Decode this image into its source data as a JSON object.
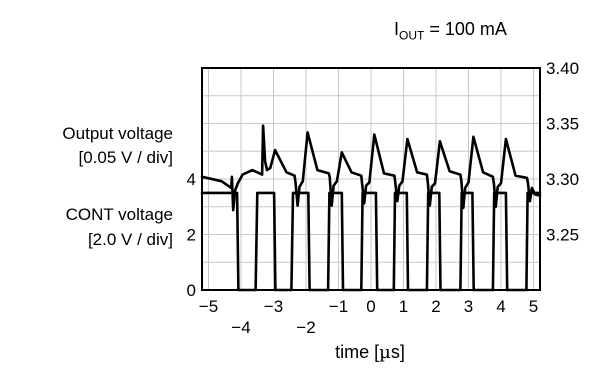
{
  "annotation": {
    "prefix": "I",
    "subscript": "OUT",
    "suffix": " = 100 mA"
  },
  "left_labels": {
    "output_line1": "Output voltage",
    "output_line2": "[0.05 V / div]",
    "cont_line1": "CONT voltage",
    "cont_line2": "[2.0 V / div]"
  },
  "xlabel_parts": {
    "before": "time [",
    "mu": "µ",
    "after": "s]"
  },
  "chart_data": {
    "type": "line",
    "xlim": [
      -5.2,
      5.2
    ],
    "grid": true,
    "x_ticks": [
      {
        "value": -5,
        "label": "−5",
        "row": "upper"
      },
      {
        "value": -4,
        "label": "−4",
        "row": "lower"
      },
      {
        "value": -3,
        "label": "−3",
        "row": "upper"
      },
      {
        "value": -2,
        "label": "−2",
        "row": "lower"
      },
      {
        "value": -1,
        "label": "−1",
        "row": "upper"
      },
      {
        "value": 0,
        "label": "0",
        "row": "upper"
      },
      {
        "value": 1,
        "label": "1",
        "row": "upper"
      },
      {
        "value": 2,
        "label": "2",
        "row": "upper"
      },
      {
        "value": 3,
        "label": "3",
        "row": "upper"
      },
      {
        "value": 4,
        "label": "4",
        "row": "upper"
      },
      {
        "value": 5,
        "label": "5",
        "row": "upper"
      }
    ],
    "right_axis": {
      "ylim": [
        3.2,
        3.4
      ],
      "ticks": [
        "3.25",
        "3.30",
        "3.35",
        "3.40"
      ]
    },
    "left_axis": {
      "ylim": [
        0,
        8
      ],
      "ticks": [
        "0",
        "2",
        "4"
      ]
    },
    "series": [
      {
        "axis": "right",
        "x": [
          -5.2,
          -4.6,
          -4.3,
          -4.28,
          -4.24,
          -4.18,
          -4.1,
          -3.95,
          -3.65,
          -3.35,
          -3.32,
          -3.26,
          -3.2,
          -3.1,
          -2.95,
          -2.6,
          -2.35,
          -2.32,
          -2.26,
          -2.2,
          -2.1,
          -1.95,
          -1.65,
          -1.3,
          -1.27,
          -1.21,
          -1.15,
          -1.05,
          -0.9,
          -0.6,
          -0.3,
          -0.27,
          -0.21,
          -0.15,
          -0.05,
          0.1,
          0.4,
          0.72,
          0.75,
          0.81,
          0.87,
          0.97,
          1.12,
          1.42,
          1.72,
          1.75,
          1.81,
          1.87,
          1.97,
          2.12,
          2.42,
          2.75,
          2.78,
          2.84,
          2.9,
          3.0,
          3.15,
          3.45,
          3.75,
          3.78,
          3.84,
          3.9,
          4.0,
          4.15,
          4.45,
          4.8,
          4.83,
          4.89,
          4.95,
          5.05,
          5.2
        ],
        "y": [
          3.302,
          3.298,
          3.292,
          3.302,
          3.272,
          3.29,
          3.296,
          3.304,
          3.308,
          3.304,
          3.348,
          3.316,
          3.308,
          3.31,
          3.326,
          3.306,
          3.303,
          3.296,
          3.276,
          3.293,
          3.298,
          3.342,
          3.308,
          3.305,
          3.302,
          3.276,
          3.294,
          3.298,
          3.324,
          3.306,
          3.303,
          3.295,
          3.278,
          3.294,
          3.297,
          3.34,
          3.305,
          3.303,
          3.296,
          3.28,
          3.294,
          3.298,
          3.336,
          3.306,
          3.304,
          3.296,
          3.276,
          3.293,
          3.296,
          3.334,
          3.307,
          3.304,
          3.298,
          3.274,
          3.292,
          3.297,
          3.338,
          3.306,
          3.302,
          3.296,
          3.275,
          3.293,
          3.296,
          3.336,
          3.303,
          3.301,
          3.296,
          3.28,
          3.292,
          3.286,
          3.285
        ]
      },
      {
        "axis": "left",
        "x": [
          -5.2,
          -4.12,
          -4.08,
          -3.55,
          -3.5,
          -2.98,
          -2.94,
          -2.45,
          -2.4,
          -1.93,
          -1.89,
          -1.32,
          -1.28,
          -0.9,
          -0.86,
          -0.3,
          -0.26,
          0.15,
          0.19,
          0.7,
          0.74,
          1.1,
          1.14,
          1.72,
          1.76,
          2.1,
          2.14,
          2.75,
          2.79,
          3.12,
          3.16,
          3.75,
          3.79,
          4.15,
          4.19,
          4.78,
          4.82,
          5.2
        ],
        "y": [
          3.5,
          3.5,
          0,
          0,
          3.5,
          3.5,
          0,
          0,
          3.5,
          3.5,
          0,
          0,
          3.5,
          3.5,
          0,
          0,
          3.5,
          3.5,
          0,
          0,
          3.5,
          3.5,
          0,
          0,
          3.5,
          3.5,
          0,
          0,
          3.5,
          3.5,
          0,
          0,
          3.5,
          3.5,
          0,
          0,
          3.5,
          3.5
        ]
      }
    ]
  }
}
